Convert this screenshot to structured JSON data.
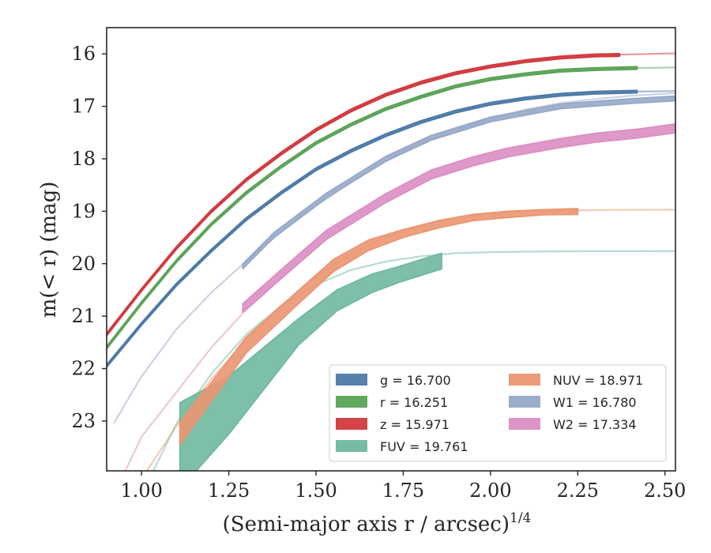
{
  "chart_data": {
    "type": "line",
    "title": "",
    "xlabel": "(Semi-major axis r / arcsec)",
    "xlabel_exponent": "1/4",
    "ylabel": "m(< r) (mag)",
    "xlim": [
      0.9,
      2.53
    ],
    "ylim": [
      23.95,
      15.5
    ],
    "y_inverted": true,
    "grid": false,
    "legend_position": "lower-right",
    "legend_columns": 2,
    "xticks": [
      "1.00",
      "1.25",
      "1.50",
      "1.75",
      "2.00",
      "2.25",
      "2.50"
    ],
    "xtick_values": [
      1.0,
      1.25,
      1.5,
      1.75,
      2.0,
      2.25,
      2.5
    ],
    "yticks": [
      "16",
      "17",
      "18",
      "19",
      "20",
      "21",
      "22",
      "23"
    ],
    "ytick_values": [
      16,
      17,
      18,
      19,
      20,
      21,
      22,
      23
    ],
    "series": [
      {
        "name": "g",
        "legend_label": "g = 16.700",
        "color": "#4c7aa7",
        "total_mag": 16.7,
        "band_half_width": 0.025,
        "model_x": [
          0.9,
          1.0,
          1.1,
          1.2,
          1.3,
          1.4,
          1.5,
          1.6,
          1.7,
          1.8,
          1.9,
          2.0,
          2.1,
          2.2,
          2.3,
          2.4,
          2.53
        ],
        "model_y": [
          21.95,
          21.15,
          20.4,
          19.75,
          19.15,
          18.65,
          18.2,
          17.85,
          17.55,
          17.3,
          17.1,
          16.95,
          16.85,
          16.78,
          16.74,
          16.72,
          16.71
        ],
        "data_x": [
          0.9,
          1.0,
          1.1,
          1.2,
          1.3,
          1.4,
          1.5,
          1.6,
          1.7,
          1.8,
          1.9,
          2.0,
          2.1,
          2.2,
          2.3,
          2.42
        ],
        "data_y": [
          21.95,
          21.15,
          20.4,
          19.75,
          19.15,
          18.65,
          18.2,
          17.85,
          17.55,
          17.3,
          17.1,
          16.95,
          16.85,
          16.78,
          16.74,
          16.72
        ]
      },
      {
        "name": "r",
        "legend_label": "r = 16.251",
        "color": "#5aa356",
        "total_mag": 16.251,
        "band_half_width": 0.025,
        "model_x": [
          0.9,
          1.0,
          1.1,
          1.2,
          1.3,
          1.4,
          1.5,
          1.6,
          1.7,
          1.8,
          1.9,
          2.0,
          2.1,
          2.2,
          2.3,
          2.4,
          2.53
        ],
        "model_y": [
          21.6,
          20.75,
          19.95,
          19.25,
          18.65,
          18.15,
          17.7,
          17.35,
          17.05,
          16.82,
          16.62,
          16.48,
          16.39,
          16.32,
          16.29,
          16.27,
          16.26
        ],
        "data_x": [
          0.9,
          1.0,
          1.1,
          1.2,
          1.3,
          1.4,
          1.5,
          1.6,
          1.7,
          1.8,
          1.9,
          2.0,
          2.1,
          2.2,
          2.3,
          2.42
        ],
        "data_y": [
          21.6,
          20.75,
          19.95,
          19.25,
          18.65,
          18.15,
          17.7,
          17.35,
          17.05,
          16.82,
          16.62,
          16.48,
          16.39,
          16.32,
          16.29,
          16.27
        ]
      },
      {
        "name": "z",
        "legend_label": "z = 15.971",
        "color": "#d1393d",
        "total_mag": 15.971,
        "band_half_width": 0.025,
        "model_x": [
          0.9,
          1.0,
          1.1,
          1.2,
          1.3,
          1.4,
          1.5,
          1.6,
          1.7,
          1.8,
          1.9,
          2.0,
          2.1,
          2.2,
          2.3,
          2.4,
          2.53
        ],
        "model_y": [
          21.35,
          20.5,
          19.7,
          19.0,
          18.4,
          17.9,
          17.45,
          17.08,
          16.78,
          16.55,
          16.37,
          16.24,
          16.14,
          16.07,
          16.03,
          16.01,
          15.99
        ],
        "data_x": [
          0.9,
          1.0,
          1.1,
          1.2,
          1.3,
          1.4,
          1.5,
          1.6,
          1.7,
          1.8,
          1.9,
          2.0,
          2.1,
          2.2,
          2.3,
          2.37
        ],
        "data_y": [
          21.35,
          20.5,
          19.7,
          19.0,
          18.4,
          17.9,
          17.45,
          17.08,
          16.78,
          16.55,
          16.37,
          16.24,
          16.14,
          16.07,
          16.03,
          16.02
        ]
      },
      {
        "name": "FUV",
        "legend_label": "FUV = 19.761",
        "color": "#6fb8a0",
        "total_mag": 19.761,
        "band_half_width": null,
        "model_x": [
          1.03,
          1.1,
          1.2,
          1.3,
          1.4,
          1.5,
          1.6,
          1.7,
          1.8,
          1.9,
          2.0,
          2.1,
          2.2,
          2.3,
          2.4,
          2.53
        ],
        "model_y": [
          24.0,
          23.05,
          22.1,
          21.35,
          20.8,
          20.4,
          20.12,
          19.96,
          19.86,
          19.8,
          19.78,
          19.77,
          19.765,
          19.762,
          19.761,
          19.76
        ],
        "data_x": [
          1.11,
          1.25,
          1.45,
          1.56,
          1.66,
          1.74,
          1.86
        ],
        "data_upper": [
          22.65,
          22.15,
          21.05,
          20.5,
          20.2,
          20.05,
          19.8
        ],
        "data_lower": [
          24.3,
          23.25,
          21.55,
          20.9,
          20.55,
          20.35,
          20.1
        ]
      },
      {
        "name": "NUV",
        "legend_label": "NUV = 18.971",
        "color": "#eb9672",
        "total_mag": 18.971,
        "band_half_width": null,
        "model_x": [
          1.01,
          1.1,
          1.2,
          1.3,
          1.4,
          1.5,
          1.6,
          1.7,
          1.8,
          1.9,
          2.0,
          2.1,
          2.2,
          2.3,
          2.4,
          2.53
        ],
        "model_y": [
          24.0,
          23.1,
          22.2,
          21.45,
          20.8,
          20.25,
          19.82,
          19.5,
          19.27,
          19.12,
          19.04,
          19.0,
          18.985,
          18.977,
          18.973,
          18.971
        ],
        "data_x": [
          1.11,
          1.3,
          1.46,
          1.55,
          1.65,
          1.75,
          1.85,
          1.95,
          2.05,
          2.15,
          2.25
        ],
        "data_upper": [
          23.05,
          21.4,
          20.45,
          19.92,
          19.55,
          19.35,
          19.18,
          19.06,
          19.0,
          18.97,
          18.95
        ],
        "data_lower": [
          23.45,
          21.7,
          20.7,
          20.15,
          19.75,
          19.5,
          19.32,
          19.18,
          19.12,
          19.07,
          19.06
        ]
      },
      {
        "name": "W1",
        "legend_label": "W1 = 16.780",
        "color": "#96a8c8",
        "total_mag": 16.78,
        "band_half_width": 0.045,
        "model_x": [
          0.92,
          1.0,
          1.1,
          1.2,
          1.3,
          1.4,
          1.5,
          1.6,
          1.7,
          1.8,
          1.9,
          2.0,
          2.1,
          2.2,
          2.3,
          2.4,
          2.53
        ],
        "model_y": [
          23.05,
          22.15,
          21.25,
          20.55,
          19.95,
          19.4,
          18.9,
          18.45,
          18.05,
          17.72,
          17.45,
          17.24,
          17.06,
          16.94,
          16.86,
          16.8,
          16.75
        ],
        "data_x": [
          1.29,
          1.38,
          1.53,
          1.7,
          1.83,
          2.0,
          2.2,
          2.4,
          2.53
        ],
        "data_y": [
          20.05,
          19.45,
          18.7,
          18.0,
          17.6,
          17.25,
          17.0,
          16.9,
          16.85
        ]
      },
      {
        "name": "W2",
        "legend_label": "W2 = 17.334",
        "color": "#db8ec3",
        "total_mag": 17.334,
        "band_half_width": 0.085,
        "model_x": [
          0.95,
          1.0,
          1.1,
          1.2,
          1.29
        ],
        "model_y": [
          24.0,
          23.3,
          22.45,
          21.6,
          20.95
        ],
        "data_x": [
          1.29,
          1.4,
          1.53,
          1.7,
          1.83,
          1.95,
          2.05,
          2.2,
          2.3,
          2.42,
          2.53
        ],
        "data_y": [
          20.85,
          20.2,
          19.45,
          18.75,
          18.3,
          18.05,
          17.88,
          17.7,
          17.6,
          17.52,
          17.42
        ]
      }
    ],
    "legend_order": [
      [
        "g",
        "r",
        "z",
        "FUV"
      ],
      [
        "NUV",
        "W1",
        "W2"
      ]
    ]
  }
}
